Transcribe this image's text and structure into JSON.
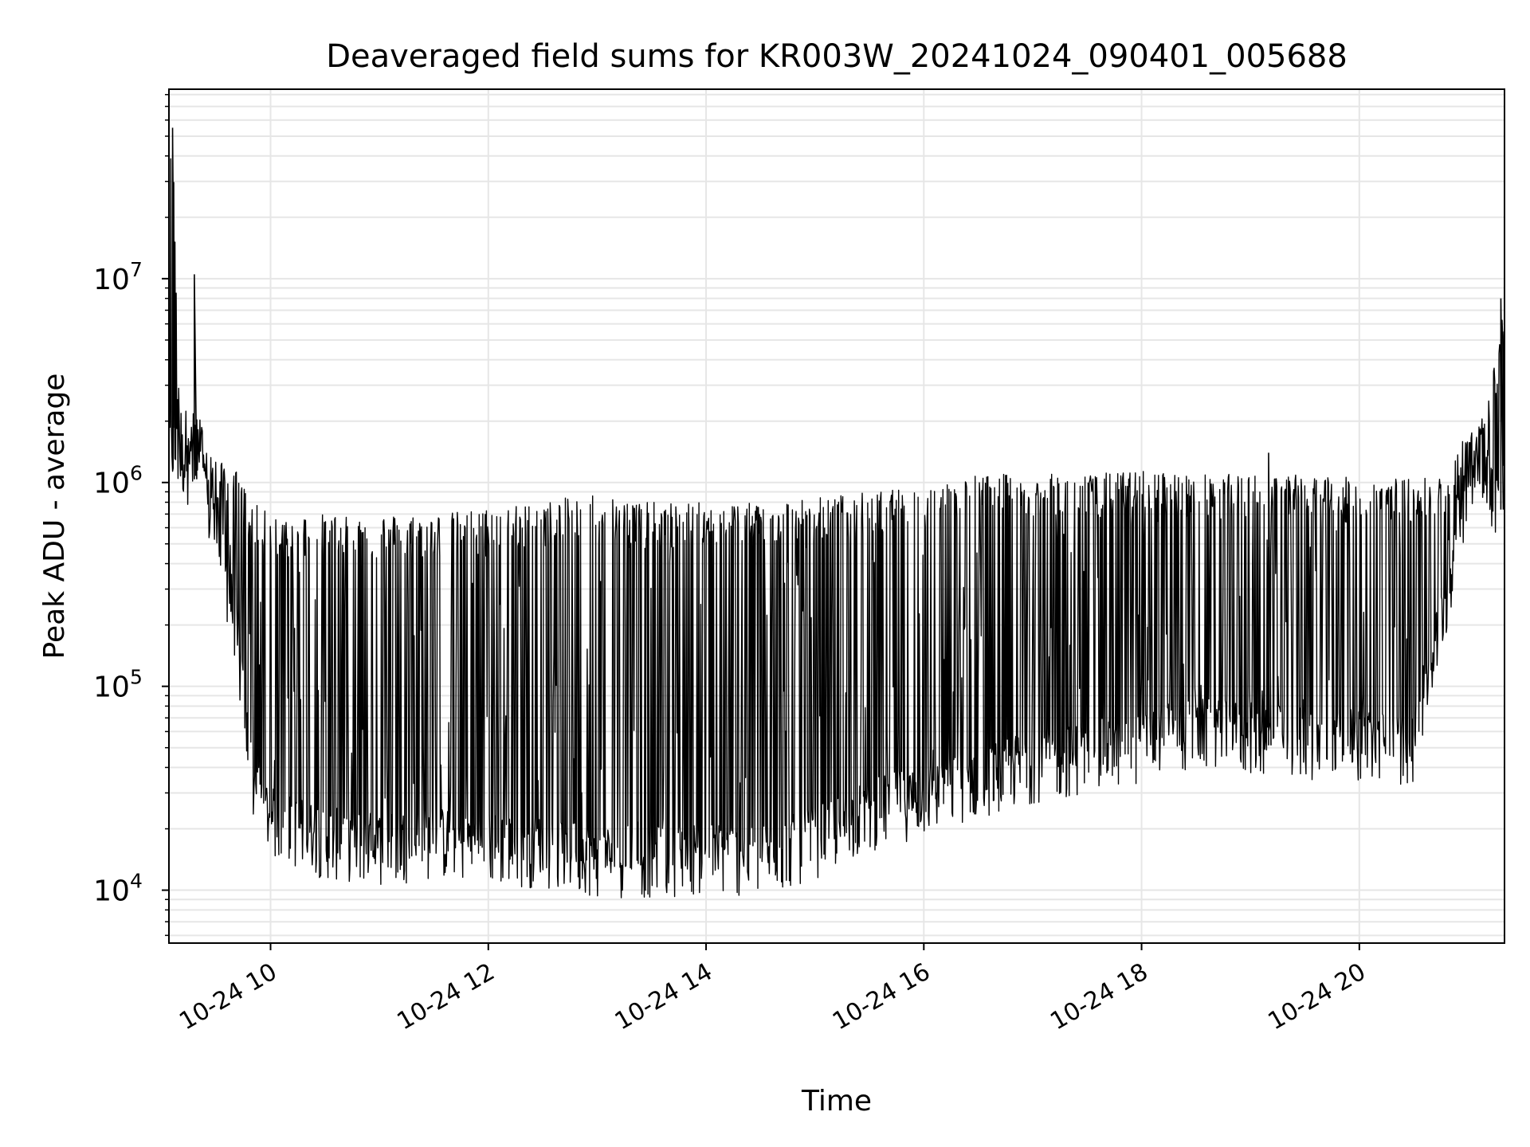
{
  "chart_data": {
    "type": "line",
    "title": "Deaveraged field sums for KR003W_20241024_090401_005688",
    "xlabel": "Time",
    "ylabel": "Peak ADU - average",
    "x_tick_labels": [
      "10-24 10",
      "10-24 12",
      "10-24 14",
      "10-24 16",
      "10-24 18",
      "10-24 20"
    ],
    "x_tick_times": [
      "2024-10-24T10:00",
      "2024-10-24T12:00",
      "2024-10-24T14:00",
      "2024-10-24T16:00",
      "2024-10-24T18:00",
      "2024-10-24T20:00"
    ],
    "xlim": [
      "2024-10-24T09:04",
      "2024-10-24T21:20"
    ],
    "y_scale": "log",
    "y_tick_labels": [
      {
        "base": "10",
        "exp": "4",
        "value": 10000
      },
      {
        "base": "10",
        "exp": "5",
        "value": 100000
      },
      {
        "base": "10",
        "exp": "6",
        "value": 1000000
      },
      {
        "base": "10",
        "exp": "7",
        "value": 10000000
      }
    ],
    "ylim": [
      5500,
      85000000
    ],
    "grid": true,
    "line_color": "#000000",
    "series": [
      {
        "note_envelope": "The trace oscillates rapidly between a lower floor and upper peaks; values below are floor and peak levels over time.",
        "x": [
          "2024-10-24T09:04",
          "2024-10-24T09:06",
          "2024-10-24T09:10",
          "2024-10-24T09:20",
          "2024-10-24T09:30",
          "2024-10-24T09:40",
          "2024-10-24T09:50",
          "2024-10-24T10:00",
          "2024-10-24T10:30",
          "2024-10-24T11:00",
          "2024-10-24T11:30",
          "2024-10-24T12:00",
          "2024-10-24T12:30",
          "2024-10-24T13:00",
          "2024-10-24T13:30",
          "2024-10-24T14:00",
          "2024-10-24T14:30",
          "2024-10-24T15:00",
          "2024-10-24T15:30",
          "2024-10-24T16:00",
          "2024-10-24T16:30",
          "2024-10-24T17:00",
          "2024-10-24T17:30",
          "2024-10-24T18:00",
          "2024-10-24T18:30",
          "2024-10-24T19:00",
          "2024-10-24T19:30",
          "2024-10-24T20:00",
          "2024-10-24T20:30",
          "2024-10-24T20:50",
          "2024-10-24T21:00",
          "2024-10-24T21:10",
          "2024-10-24T21:20"
        ],
        "floor": [
          1500000,
          1300000,
          1200000,
          1000000,
          500000,
          200000,
          30000,
          20000,
          16000,
          15000,
          16000,
          15000,
          14500,
          13000,
          13000,
          13500,
          13000,
          16000,
          22000,
          26000,
          32000,
          38000,
          42000,
          48000,
          55000,
          52000,
          50000,
          48000,
          46000,
          300000,
          1000000,
          900000,
          700000
        ],
        "peak": [
          30000000,
          55000000,
          2400000,
          2200000,
          1300000,
          1200000,
          800000,
          700000,
          700000,
          700000,
          700000,
          750000,
          800000,
          900000,
          800000,
          800000,
          800000,
          850000,
          900000,
          950000,
          1100000,
          1100000,
          1100000,
          1150000,
          1100000,
          1100000,
          1100000,
          1050000,
          1050000,
          1100000,
          2000000,
          2200000,
          8000000
        ]
      }
    ],
    "notable_spikes": [
      {
        "x": "2024-10-24T09:06",
        "y": 55000000
      },
      {
        "x": "2024-10-24T09:18",
        "y": 10500000
      },
      {
        "x": "2024-10-24T19:10",
        "y": 1400000
      },
      {
        "x": "2024-10-24T21:18",
        "y": 8000000
      }
    ]
  }
}
